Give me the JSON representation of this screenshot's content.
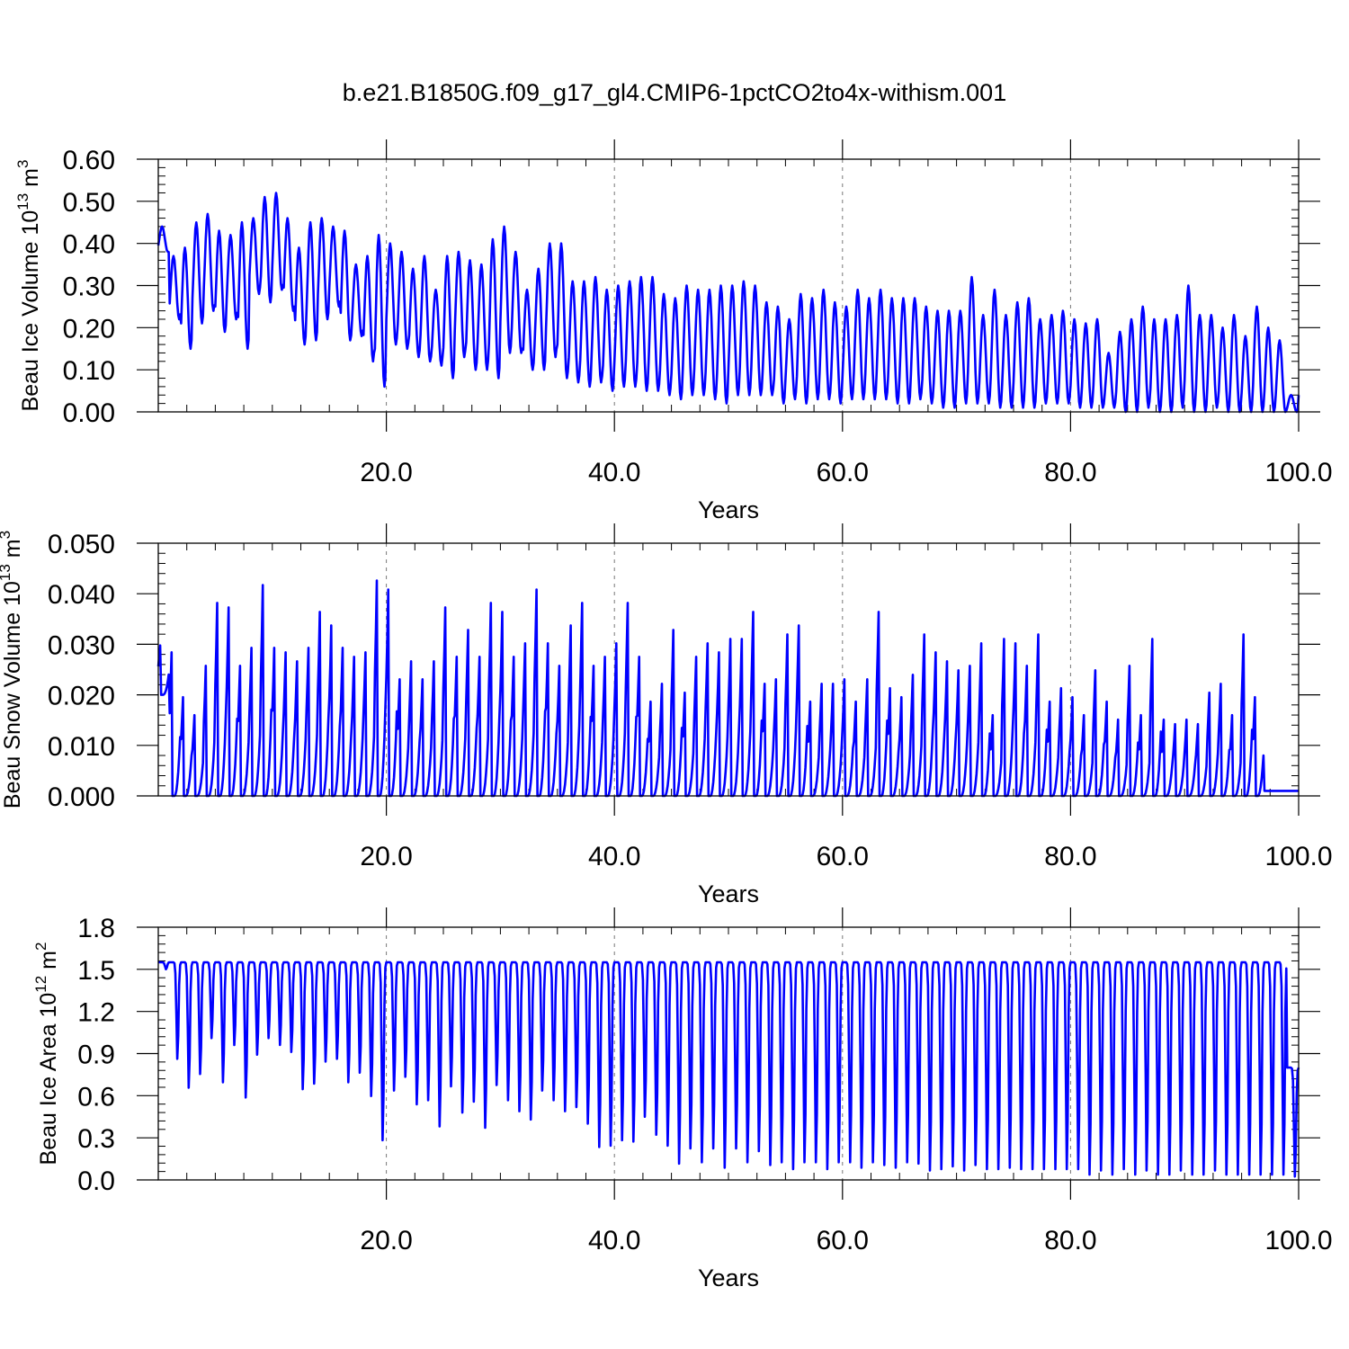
{
  "figure": {
    "title": "b.e21.B1850G.f09_g17_gl4.CMIP6-1pctCO2to4x-withism.001"
  },
  "chart_data": [
    {
      "type": "line",
      "ylabel": "Beau Ice Volume 10",
      "ylabel_sup": "13",
      "ylabel_unit": " m",
      "ylabel_unit_sup": "3",
      "xlabel": "Years",
      "xlim": [
        0.0,
        100.0
      ],
      "ylim": [
        0.0,
        0.6
      ],
      "yticks": [
        0.0,
        0.1,
        0.2,
        0.3,
        0.4,
        0.5,
        0.6
      ],
      "ytick_labels": [
        "0.00",
        "0.10",
        "0.20",
        "0.30",
        "0.40",
        "0.50",
        "0.60"
      ],
      "xticks": [
        20,
        40,
        60,
        80,
        100
      ],
      "xtick_labels": [
        "20.0",
        "40.0",
        "60.0",
        "80.0",
        "100.0"
      ],
      "grid": "dashed vertical at major x ticks",
      "line_color": "#0000ff",
      "seasonal": {
        "max": [
          0.44,
          0.37,
          0.39,
          0.45,
          0.47,
          0.43,
          0.42,
          0.45,
          0.46,
          0.51,
          0.52,
          0.46,
          0.39,
          0.45,
          0.46,
          0.44,
          0.43,
          0.35,
          0.37,
          0.42,
          0.4,
          0.38,
          0.34,
          0.37,
          0.29,
          0.37,
          0.38,
          0.36,
          0.35,
          0.41,
          0.44,
          0.38,
          0.29,
          0.34,
          0.4,
          0.4,
          0.31,
          0.31,
          0.32,
          0.29,
          0.3,
          0.31,
          0.32,
          0.32,
          0.28,
          0.27,
          0.3,
          0.29,
          0.29,
          0.3,
          0.3,
          0.31,
          0.3,
          0.26,
          0.25,
          0.22,
          0.28,
          0.27,
          0.29,
          0.26,
          0.25,
          0.29,
          0.27,
          0.29,
          0.27,
          0.27,
          0.27,
          0.25,
          0.24,
          0.24,
          0.24,
          0.32,
          0.23,
          0.29,
          0.23,
          0.26,
          0.27,
          0.22,
          0.23,
          0.24,
          0.22,
          0.21,
          0.22,
          0.14,
          0.19,
          0.22,
          0.25,
          0.22,
          0.22,
          0.23,
          0.3,
          0.23,
          0.23,
          0.2,
          0.23,
          0.18,
          0.25,
          0.2,
          0.17,
          0.04
        ],
        "min": [
          0.38,
          0.22,
          0.15,
          0.21,
          0.24,
          0.19,
          0.22,
          0.15,
          0.28,
          0.26,
          0.29,
          0.24,
          0.16,
          0.17,
          0.22,
          0.25,
          0.17,
          0.18,
          0.12,
          0.06,
          0.16,
          0.15,
          0.13,
          0.12,
          0.11,
          0.08,
          0.13,
          0.1,
          0.1,
          0.08,
          0.14,
          0.14,
          0.1,
          0.1,
          0.13,
          0.08,
          0.07,
          0.06,
          0.07,
          0.05,
          0.06,
          0.06,
          0.05,
          0.05,
          0.04,
          0.03,
          0.04,
          0.04,
          0.03,
          0.02,
          0.04,
          0.04,
          0.04,
          0.04,
          0.02,
          0.03,
          0.02,
          0.03,
          0.03,
          0.02,
          0.03,
          0.03,
          0.03,
          0.03,
          0.02,
          0.02,
          0.03,
          0.02,
          0.01,
          0.01,
          0.02,
          0.02,
          0.02,
          0.01,
          0.01,
          0.01,
          0.01,
          0.02,
          0.02,
          0.02,
          0.01,
          0.01,
          0.01,
          0.01,
          0.0,
          0.0,
          0.01,
          0.0,
          0.0,
          0.01,
          0.0,
          0.0,
          0.01,
          0.0,
          0.0,
          0.0,
          0.0,
          0.0,
          0.0,
          0.0
        ]
      }
    },
    {
      "type": "line",
      "ylabel": "Beau Snow Volume 10",
      "ylabel_sup": "13",
      "ylabel_unit": " m",
      "ylabel_unit_sup": "3",
      "xlabel": "Years",
      "xlim": [
        0.0,
        100.0
      ],
      "ylim": [
        0.0,
        0.05
      ],
      "yticks": [
        0.0,
        0.01,
        0.02,
        0.03,
        0.04,
        0.05
      ],
      "ytick_labels": [
        "0.000",
        "0.010",
        "0.020",
        "0.030",
        "0.040",
        "0.050"
      ],
      "xticks": [
        20,
        40,
        60,
        80,
        100
      ],
      "xtick_labels": [
        "20.0",
        "40.0",
        "60.0",
        "80.0",
        "100.0"
      ],
      "grid": "dashed vertical at major x ticks",
      "line_color": "#0000ff",
      "seasonal": {
        "max": [
          0.031,
          0.032,
          0.022,
          0.018,
          0.029,
          0.043,
          0.042,
          0.029,
          0.033,
          0.047,
          0.033,
          0.032,
          0.03,
          0.033,
          0.041,
          0.038,
          0.033,
          0.031,
          0.032,
          0.048,
          0.046,
          0.026,
          0.03,
          0.026,
          0.03,
          0.042,
          0.031,
          0.037,
          0.031,
          0.043,
          0.041,
          0.031,
          0.034,
          0.046,
          0.034,
          0.029,
          0.038,
          0.043,
          0.029,
          0.031,
          0.034,
          0.043,
          0.031,
          0.021,
          0.025,
          0.037,
          0.023,
          0.031,
          0.034,
          0.032,
          0.035,
          0.035,
          0.041,
          0.025,
          0.026,
          0.036,
          0.038,
          0.021,
          0.025,
          0.025,
          0.026,
          0.021,
          0.026,
          0.041,
          0.024,
          0.022,
          0.027,
          0.036,
          0.032,
          0.03,
          0.028,
          0.029,
          0.034,
          0.018,
          0.035,
          0.034,
          0.029,
          0.036,
          0.021,
          0.024,
          0.022,
          0.018,
          0.028,
          0.021,
          0.017,
          0.029,
          0.018,
          0.035,
          0.017,
          0.016,
          0.017,
          0.016,
          0.023,
          0.025,
          0.018,
          0.036,
          0.022,
          0.001
        ],
        "min": [
          0.02,
          0,
          0,
          0,
          0,
          0,
          0,
          0,
          0,
          0,
          0,
          0,
          0,
          0,
          0,
          0,
          0,
          0,
          0,
          0,
          0,
          0,
          0,
          0,
          0,
          0,
          0,
          0,
          0,
          0,
          0,
          0,
          0,
          0,
          0,
          0,
          0,
          0,
          0,
          0,
          0,
          0,
          0,
          0,
          0,
          0,
          0,
          0,
          0,
          0,
          0,
          0,
          0,
          0,
          0,
          0,
          0,
          0,
          0,
          0,
          0,
          0,
          0,
          0,
          0,
          0,
          0,
          0,
          0,
          0,
          0,
          0,
          0,
          0,
          0,
          0,
          0,
          0,
          0,
          0,
          0,
          0,
          0,
          0,
          0,
          0,
          0,
          0,
          0,
          0,
          0,
          0,
          0,
          0,
          0,
          0,
          0,
          0.001
        ]
      }
    },
    {
      "type": "line",
      "ylabel": "Beau Ice Area 10",
      "ylabel_sup": "12",
      "ylabel_unit": " m",
      "ylabel_unit_sup": "2",
      "xlabel": "Years",
      "xlim": [
        0.0,
        100.0
      ],
      "ylim": [
        0.0,
        1.8
      ],
      "yticks": [
        0.0,
        0.3,
        0.6,
        0.9,
        1.2,
        1.5,
        1.8
      ],
      "ytick_labels": [
        "0.0",
        "0.3",
        "0.6",
        "0.9",
        "1.2",
        "1.5",
        "1.8"
      ],
      "xticks": [
        20,
        40,
        60,
        80,
        100
      ],
      "xtick_labels": [
        "20.0",
        "40.0",
        "60.0",
        "80.0",
        "100.0"
      ],
      "grid": "dashed vertical at major x ticks",
      "line_color": "#0000ff",
      "seasonal": {
        "max": [
          1.55,
          1.55,
          1.55,
          1.55,
          1.55,
          1.55,
          1.55,
          1.55,
          1.55,
          1.55,
          1.55,
          1.55,
          1.55,
          1.55,
          1.55,
          1.55,
          1.55,
          1.55,
          1.55,
          1.55,
          1.55,
          1.55,
          1.55,
          1.55,
          1.55,
          1.55,
          1.55,
          1.55,
          1.55,
          1.55,
          1.55,
          1.55,
          1.55,
          1.55,
          1.55,
          1.55,
          1.55,
          1.55,
          1.55,
          1.55,
          1.55,
          1.55,
          1.55,
          1.55,
          1.55,
          1.55,
          1.55,
          1.55,
          1.55,
          1.55,
          1.55,
          1.55,
          1.55,
          1.55,
          1.55,
          1.55,
          1.55,
          1.55,
          1.55,
          1.55,
          1.55,
          1.55,
          1.55,
          1.55,
          1.55,
          1.55,
          1.55,
          1.55,
          1.55,
          1.55,
          1.55,
          1.55,
          1.55,
          1.55,
          1.55,
          1.55,
          1.55,
          1.55,
          1.55,
          1.55,
          1.55,
          1.55,
          1.55,
          1.55,
          1.55,
          1.55,
          1.55,
          1.55,
          1.55,
          1.55,
          1.55,
          1.55,
          1.55,
          1.55,
          1.55,
          1.55,
          1.55,
          1.55,
          1.55,
          0.8
        ],
        "min": [
          1.5,
          0.85,
          0.64,
          0.74,
          1.0,
          0.68,
          0.95,
          0.57,
          0.88,
          1.0,
          0.95,
          0.9,
          0.63,
          0.67,
          0.83,
          0.85,
          0.68,
          0.75,
          0.58,
          0.26,
          0.62,
          0.72,
          0.52,
          0.55,
          0.36,
          0.65,
          0.46,
          0.54,
          0.35,
          0.66,
          0.55,
          0.47,
          0.41,
          0.62,
          0.55,
          0.47,
          0.5,
          0.38,
          0.21,
          0.22,
          0.26,
          0.25,
          0.43,
          0.3,
          0.22,
          0.09,
          0.2,
          0.1,
          0.2,
          0.06,
          0.2,
          0.1,
          0.18,
          0.08,
          0.1,
          0.05,
          0.1,
          0.1,
          0.05,
          0.1,
          0.1,
          0.06,
          0.1,
          0.08,
          0.06,
          0.1,
          0.09,
          0.04,
          0.05,
          0.07,
          0.04,
          0.08,
          0.05,
          0.05,
          0.06,
          0.05,
          0.05,
          0.05,
          0.05,
          0.05,
          0.05,
          0.01,
          0.04,
          0.01,
          0.05,
          0.01,
          0.04,
          0.01,
          0.01,
          0.04,
          0.01,
          0.01,
          0.04,
          0.01,
          0.01,
          0.01,
          0.01,
          0.01,
          0.01,
          0.01
        ]
      }
    }
  ]
}
